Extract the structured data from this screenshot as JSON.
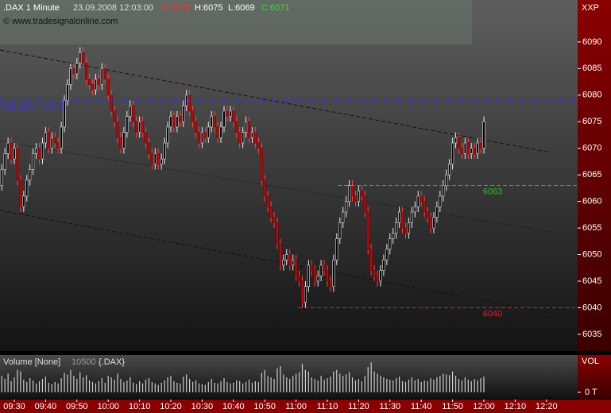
{
  "chart_data": {
    "type": "candlestick",
    "title": ".DAX 1 Minute",
    "date": "23.09.2008 12:03:00",
    "ohlc_labels": [
      "O:6075",
      "H:6075",
      "L:6069",
      "C:6071"
    ],
    "copyright": "© www.tradesignalonline.com",
    "axis_label": "XXP",
    "up_color": "#000000",
    "down_color": "#d00000",
    "xlim": [
      -0.57,
      183.95
    ],
    "ylim": [
      6031.85,
      6097.9
    ],
    "yticks": [
      6035,
      6040,
      6045,
      6050,
      6055,
      6060,
      6065,
      6070,
      6075,
      6080,
      6085,
      6090
    ],
    "xticks": [
      {
        "value": 4,
        "label": "09:30"
      },
      {
        "value": 14,
        "label": "09:40"
      },
      {
        "value": 24,
        "label": "09:50"
      },
      {
        "value": 34,
        "label": "10:00"
      },
      {
        "value": 44,
        "label": "10:10"
      },
      {
        "value": 54,
        "label": "10:20"
      },
      {
        "value": 64,
        "label": "10:30"
      },
      {
        "value": 74,
        "label": "10:40"
      },
      {
        "value": 84,
        "label": "10:50"
      },
      {
        "value": 94,
        "label": "11:00"
      },
      {
        "value": 104,
        "label": "11:10"
      },
      {
        "value": 114,
        "label": "11:20"
      },
      {
        "value": 124,
        "label": "11:30"
      },
      {
        "value": 134,
        "label": "11:40"
      },
      {
        "value": 144,
        "label": "11:50"
      },
      {
        "value": 154,
        "label": "12:00"
      },
      {
        "value": 164,
        "label": "12:10"
      },
      {
        "value": 174,
        "label": "12:20"
      }
    ],
    "levels": [
      {
        "value": 6079,
        "label": "200,00% - 6079",
        "color": "#3030ff"
      },
      {
        "value": 6063,
        "label": "6063",
        "color": "#20c020"
      },
      {
        "value": 6040,
        "label": "6040",
        "color": "#e02020"
      }
    ],
    "candles": [
      [
        6063,
        6067,
        6062,
        6066
      ],
      [
        6066,
        6070,
        6065,
        6069
      ],
      [
        6069,
        6072,
        6068,
        6071
      ],
      [
        6071,
        6072,
        6067,
        6068
      ],
      [
        6068,
        6071,
        6067,
        6070
      ],
      [
        6070,
        6071,
        6063,
        6064
      ],
      [
        6064,
        6065,
        6058,
        6059
      ],
      [
        6059,
        6062,
        6058,
        6061
      ],
      [
        6061,
        6065,
        6060,
        6064
      ],
      [
        6064,
        6067,
        6063,
        6066
      ],
      [
        6066,
        6070,
        6065,
        6069
      ],
      [
        6069,
        6071,
        6068,
        6070
      ],
      [
        6070,
        6071,
        6067,
        6068
      ],
      [
        6068,
        6072,
        6067,
        6071
      ],
      [
        6071,
        6074,
        6070,
        6073
      ],
      [
        6073,
        6074,
        6069,
        6070
      ],
      [
        6070,
        6073,
        6069,
        6072
      ],
      [
        6072,
        6073,
        6070,
        6071
      ],
      [
        6071,
        6072,
        6069,
        6070
      ],
      [
        6070,
        6075,
        6069,
        6074
      ],
      [
        6074,
        6080,
        6073,
        6079
      ],
      [
        6079,
        6083,
        6078,
        6082
      ],
      [
        6082,
        6086,
        6081,
        6085
      ],
      [
        6085,
        6086,
        6083,
        6084
      ],
      [
        6084,
        6087,
        6083,
        6086
      ],
      [
        6086,
        6089,
        6085,
        6088
      ],
      [
        6088,
        6089,
        6085,
        6086
      ],
      [
        6086,
        6087,
        6082,
        6083
      ],
      [
        6083,
        6084,
        6081,
        6082
      ],
      [
        6082,
        6083,
        6080,
        6081
      ],
      [
        6081,
        6084,
        6080,
        6083
      ],
      [
        6083,
        6084,
        6081,
        6082
      ],
      [
        6082,
        6086,
        6081,
        6085
      ],
      [
        6085,
        6086,
        6082,
        6083
      ],
      [
        6083,
        6084,
        6079,
        6080
      ],
      [
        6080,
        6081,
        6076,
        6077
      ],
      [
        6077,
        6078,
        6074,
        6075
      ],
      [
        6075,
        6076,
        6071,
        6072
      ],
      [
        6072,
        6073,
        6069,
        6070
      ],
      [
        6070,
        6074,
        6069,
        6073
      ],
      [
        6073,
        6077,
        6072,
        6076
      ],
      [
        6076,
        6079,
        6075,
        6078
      ],
      [
        6078,
        6079,
        6074,
        6075
      ],
      [
        6075,
        6076,
        6072,
        6073
      ],
      [
        6073,
        6076,
        6072,
        6075
      ],
      [
        6075,
        6076,
        6072,
        6073
      ],
      [
        6073,
        6074,
        6070,
        6071
      ],
      [
        6071,
        6072,
        6068,
        6069
      ],
      [
        6069,
        6070,
        6066,
        6067
      ],
      [
        6067,
        6070,
        6066,
        6069
      ],
      [
        6069,
        6070,
        6066,
        6067
      ],
      [
        6067,
        6069,
        6066,
        6068
      ],
      [
        6068,
        6072,
        6067,
        6071
      ],
      [
        6071,
        6075,
        6070,
        6074
      ],
      [
        6074,
        6077,
        6073,
        6076
      ],
      [
        6076,
        6077,
        6073,
        6074
      ],
      [
        6074,
        6077,
        6073,
        6076
      ],
      [
        6076,
        6077,
        6074,
        6075
      ],
      [
        6075,
        6079,
        6074,
        6078
      ],
      [
        6078,
        6081,
        6077,
        6080
      ],
      [
        6080,
        6081,
        6076,
        6077
      ],
      [
        6077,
        6078,
        6074,
        6075
      ],
      [
        6075,
        6076,
        6072,
        6073
      ],
      [
        6073,
        6074,
        6070,
        6071
      ],
      [
        6071,
        6074,
        6070,
        6073
      ],
      [
        6073,
        6074,
        6071,
        6072
      ],
      [
        6072,
        6075,
        6071,
        6074
      ],
      [
        6074,
        6077,
        6073,
        6076
      ],
      [
        6076,
        6077,
        6073,
        6074
      ],
      [
        6074,
        6075,
        6071,
        6072
      ],
      [
        6072,
        6075,
        6071,
        6074
      ],
      [
        6074,
        6078,
        6073,
        6077
      ],
      [
        6077,
        6078,
        6075,
        6076
      ],
      [
        6076,
        6078,
        6075,
        6077
      ],
      [
        6077,
        6078,
        6074,
        6075
      ],
      [
        6075,
        6076,
        6072,
        6073
      ],
      [
        6073,
        6074,
        6070,
        6071
      ],
      [
        6071,
        6074,
        6070,
        6073
      ],
      [
        6073,
        6076,
        6072,
        6075
      ],
      [
        6075,
        6076,
        6071,
        6072
      ],
      [
        6072,
        6074,
        6071,
        6073
      ],
      [
        6073,
        6074,
        6070,
        6071
      ],
      [
        6071,
        6072,
        6069,
        6070
      ],
      [
        6070,
        6071,
        6063,
        6064
      ],
      [
        6064,
        6065,
        6060,
        6061
      ],
      [
        6061,
        6062,
        6058,
        6059
      ],
      [
        6059,
        6060,
        6056,
        6057
      ],
      [
        6057,
        6058,
        6055,
        6056
      ],
      [
        6056,
        6057,
        6051,
        6052
      ],
      [
        6052,
        6053,
        6047,
        6048
      ],
      [
        6048,
        6050,
        6047,
        6049
      ],
      [
        6049,
        6051,
        6048,
        6050
      ],
      [
        6050,
        6051,
        6047,
        6048
      ],
      [
        6048,
        6050,
        6047,
        6049
      ],
      [
        6049,
        6050,
        6045,
        6046
      ],
      [
        6046,
        6047,
        6044,
        6045
      ],
      [
        6045,
        6046,
        6040,
        6041
      ],
      [
        6041,
        6045,
        6040,
        6044
      ],
      [
        6044,
        6049,
        6043,
        6048
      ],
      [
        6048,
        6049,
        6046,
        6047
      ],
      [
        6047,
        6048,
        6044,
        6045
      ],
      [
        6045,
        6047,
        6044,
        6046
      ],
      [
        6046,
        6049,
        6045,
        6048
      ],
      [
        6048,
        6049,
        6046,
        6047
      ],
      [
        6047,
        6048,
        6044,
        6045
      ],
      [
        6045,
        6046,
        6043,
        6044
      ],
      [
        6044,
        6050,
        6043,
        6049
      ],
      [
        6049,
        6054,
        6048,
        6053
      ],
      [
        6053,
        6057,
        6052,
        6056
      ],
      [
        6056,
        6059,
        6055,
        6058
      ],
      [
        6058,
        6061,
        6057,
        6060
      ],
      [
        6060,
        6064,
        6059,
        6063
      ],
      [
        6063,
        6064,
        6060,
        6061
      ],
      [
        6061,
        6062,
        6059,
        6060
      ],
      [
        6060,
        6063,
        6059,
        6062
      ],
      [
        6062,
        6063,
        6060,
        6061
      ],
      [
        6061,
        6062,
        6057,
        6058
      ],
      [
        6058,
        6059,
        6050,
        6051
      ],
      [
        6051,
        6052,
        6046,
        6047
      ],
      [
        6047,
        6048,
        6045,
        6046
      ],
      [
        6046,
        6047,
        6044,
        6045
      ],
      [
        6045,
        6048,
        6044,
        6047
      ],
      [
        6047,
        6050,
        6046,
        6049
      ],
      [
        6049,
        6052,
        6048,
        6051
      ],
      [
        6051,
        6054,
        6050,
        6053
      ],
      [
        6053,
        6055,
        6052,
        6054
      ],
      [
        6054,
        6057,
        6053,
        6056
      ],
      [
        6056,
        6059,
        6055,
        6058
      ],
      [
        6058,
        6059,
        6054,
        6055
      ],
      [
        6055,
        6056,
        6053,
        6054
      ],
      [
        6054,
        6057,
        6053,
        6056
      ],
      [
        6056,
        6059,
        6055,
        6058
      ],
      [
        6058,
        6060,
        6057,
        6059
      ],
      [
        6059,
        6062,
        6058,
        6061
      ],
      [
        6061,
        6062,
        6059,
        6060
      ],
      [
        6060,
        6061,
        6057,
        6058
      ],
      [
        6058,
        6059,
        6056,
        6057
      ],
      [
        6057,
        6058,
        6054,
        6055
      ],
      [
        6055,
        6058,
        6054,
        6057
      ],
      [
        6057,
        6060,
        6056,
        6059
      ],
      [
        6059,
        6062,
        6058,
        6061
      ],
      [
        6061,
        6064,
        6060,
        6063
      ],
      [
        6063,
        6066,
        6062,
        6065
      ],
      [
        6065,
        6068,
        6064,
        6067
      ],
      [
        6067,
        6072,
        6066,
        6071
      ],
      [
        6071,
        6073,
        6070,
        6072
      ],
      [
        6072,
        6073,
        6069,
        6070
      ],
      [
        6070,
        6071,
        6068,
        6069
      ],
      [
        6069,
        6072,
        6068,
        6071
      ],
      [
        6071,
        6072,
        6068,
        6069
      ],
      [
        6069,
        6071,
        6068,
        6070
      ],
      [
        6070,
        6071,
        6068,
        6069
      ],
      [
        6069,
        6072,
        6068,
        6071
      ],
      [
        6071,
        6072,
        6069,
        6070
      ],
      [
        6070,
        6076,
        6069,
        6075
      ]
    ],
    "volume": {
      "title": "Volume [None]",
      "value_label": "10500",
      "symbol": "{.DAX}",
      "axis_label": "VOL",
      "color": "#d0d0d0",
      "ylim": [
        0,
        50000
      ],
      "yticks": [
        {
          "value": 0,
          "label": "0 T"
        }
      ],
      "values": [
        22000,
        18000,
        25000,
        15000,
        20000,
        30000,
        28000,
        17000,
        14000,
        19000,
        16000,
        12000,
        15000,
        18000,
        21000,
        13000,
        11000,
        14000,
        12000,
        19000,
        26000,
        24000,
        30000,
        22000,
        18000,
        27000,
        20000,
        23000,
        16000,
        14000,
        12000,
        15000,
        19000,
        13000,
        22000,
        20000,
        17000,
        25000,
        18000,
        14000,
        16000,
        20000,
        13000,
        11000,
        15000,
        12000,
        17000,
        19000,
        14000,
        12000,
        10000,
        13000,
        16000,
        20000,
        22000,
        15000,
        13000,
        12000,
        21000,
        24000,
        18000,
        14000,
        16000,
        12000,
        11000,
        10000,
        14000,
        18000,
        13000,
        12000,
        15000,
        19000,
        14000,
        12000,
        13000,
        16000,
        15000,
        12000,
        14000,
        17000,
        13000,
        15000,
        14000,
        26000,
        30000,
        22000,
        20000,
        18000,
        32000,
        35000,
        24000,
        20000,
        18000,
        22000,
        25000,
        27000,
        38000,
        30000,
        28000,
        20000,
        18000,
        16000,
        22000,
        17000,
        19000,
        21000,
        28000,
        30000,
        25000,
        22000,
        24000,
        27000,
        20000,
        16000,
        18000,
        15000,
        22000,
        34000,
        40000,
        28000,
        25000,
        22000,
        20000,
        18000,
        17000,
        16000,
        19000,
        21000,
        15000,
        14000,
        17000,
        20000,
        16000,
        18000,
        14000,
        16000,
        15000,
        19000,
        17000,
        20000,
        22000,
        25000,
        24000,
        23000,
        28000,
        22000,
        18000,
        16000,
        20000,
        17000,
        15000,
        18000,
        16000,
        19000,
        21000
      ]
    }
  }
}
